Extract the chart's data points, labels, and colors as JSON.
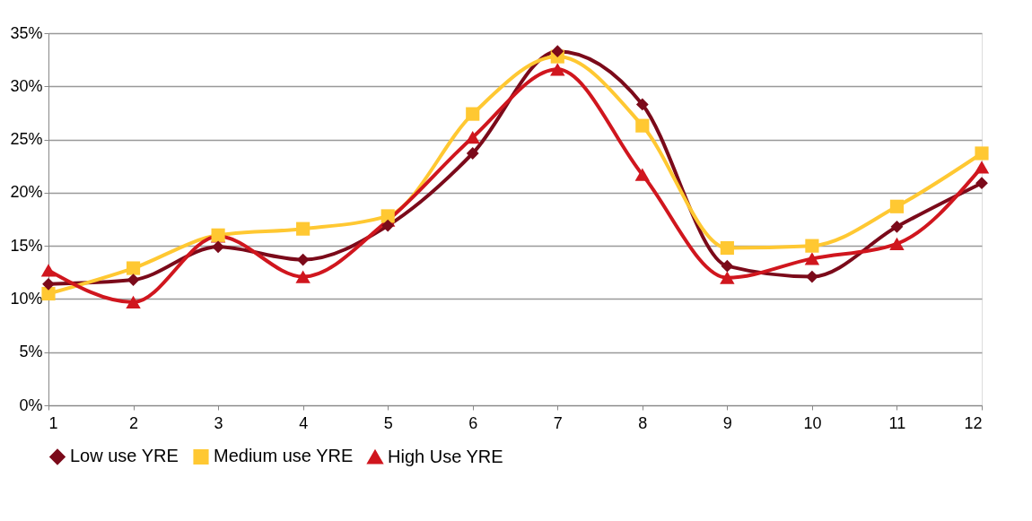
{
  "chart_data": {
    "type": "line",
    "x": [
      1,
      2,
      3,
      4,
      5,
      6,
      7,
      8,
      9,
      10,
      11,
      12
    ],
    "xlim": [
      1,
      12
    ],
    "xticks": [
      1,
      2,
      3,
      4,
      5,
      6,
      7,
      8,
      9,
      10,
      11,
      12
    ],
    "ylim": [
      0,
      35
    ],
    "yticks": [
      {
        "value": 0,
        "label": "0%"
      },
      {
        "value": 5,
        "label": "5%"
      },
      {
        "value": 10,
        "label": "10%"
      },
      {
        "value": 15,
        "label": "15%"
      },
      {
        "value": 20,
        "label": "20%"
      },
      {
        "value": 25,
        "label": "25%"
      },
      {
        "value": 30,
        "label": "30%"
      },
      {
        "value": 35,
        "label": "35%"
      }
    ],
    "grid": "y",
    "legend": "bottom",
    "line_style": "solid",
    "series": [
      {
        "name": "Low use YRE",
        "color": "#7b0a1a",
        "marker": "diamond",
        "values": [
          11.4,
          11.8,
          14.9,
          13.7,
          16.9,
          23.7,
          33.3,
          28.3,
          13.1,
          12.1,
          16.8,
          20.9
        ]
      },
      {
        "name": "Medium use YRE",
        "color": "#ffc832",
        "marker": "square",
        "values": [
          10.5,
          12.9,
          16.0,
          16.6,
          17.8,
          27.4,
          32.8,
          26.3,
          14.8,
          15.0,
          18.7,
          23.7
        ]
      },
      {
        "name": "High Use YRE",
        "color": "#d0161e",
        "marker": "triangle",
        "values": [
          12.7,
          9.7,
          15.9,
          12.1,
          17.4,
          25.2,
          31.6,
          21.7,
          12.0,
          13.8,
          15.2,
          22.4
        ]
      }
    ]
  }
}
